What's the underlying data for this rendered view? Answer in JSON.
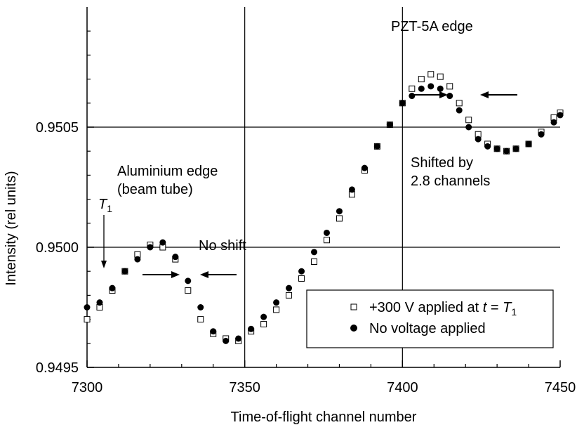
{
  "chart_data": {
    "type": "scatter",
    "xlabel": "Time-of-flight channel number",
    "ylabel": "Intensity (rel units)",
    "xlim": [
      7300,
      7450
    ],
    "ylim": [
      0.9495,
      0.951
    ],
    "x_ticks": [
      "7300",
      "7350",
      "7400",
      "7450"
    ],
    "x_tick_values": [
      7300,
      7350,
      7400,
      7450
    ],
    "y_ticks": [
      "0.9495",
      "0.9500",
      "0.9505"
    ],
    "y_tick_values": [
      0.9495,
      0.95,
      0.9505
    ],
    "gridlines": {
      "x": [
        7350,
        7400
      ],
      "y": [
        0.95,
        0.9505
      ]
    },
    "legend_position": "bottom-right",
    "series": [
      {
        "name": "+300 V applied at t = T1",
        "marker": "open-square",
        "points": [
          [
            7300,
            0.9497
          ],
          [
            7304,
            0.94975
          ],
          [
            7308,
            0.94982
          ],
          [
            7312,
            0.9499
          ],
          [
            7316,
            0.94997
          ],
          [
            7320,
            0.95001
          ],
          [
            7324,
            0.95
          ],
          [
            7328,
            0.94995
          ],
          [
            7332,
            0.94982
          ],
          [
            7336,
            0.9497
          ],
          [
            7340,
            0.94964
          ],
          [
            7344,
            0.94962
          ],
          [
            7348,
            0.94961
          ],
          [
            7352,
            0.94965
          ],
          [
            7356,
            0.94968
          ],
          [
            7360,
            0.94974
          ],
          [
            7364,
            0.9498
          ],
          [
            7368,
            0.94987
          ],
          [
            7372,
            0.94994
          ],
          [
            7376,
            0.95003
          ],
          [
            7380,
            0.95012
          ],
          [
            7384,
            0.95022
          ],
          [
            7388,
            0.95032
          ],
          [
            7392,
            0.95042
          ],
          [
            7396,
            0.95051
          ],
          [
            7400,
            0.9506
          ],
          [
            7403,
            0.95066
          ],
          [
            7406,
            0.9507
          ],
          [
            7409,
            0.95072
          ],
          [
            7412,
            0.95071
          ],
          [
            7415,
            0.95067
          ],
          [
            7418,
            0.9506
          ],
          [
            7421,
            0.95053
          ],
          [
            7424,
            0.95047
          ],
          [
            7427,
            0.95043
          ],
          [
            7430,
            0.95041
          ],
          [
            7433,
            0.9504
          ],
          [
            7436,
            0.95041
          ],
          [
            7440,
            0.95043
          ],
          [
            7444,
            0.95048
          ],
          [
            7448,
            0.95054
          ],
          [
            7450,
            0.95056
          ]
        ]
      },
      {
        "name": "No voltage applied",
        "marker": "filled-circle",
        "points": [
          [
            7300,
            0.94975
          ],
          [
            7304,
            0.94977
          ],
          [
            7308,
            0.94983
          ],
          [
            7312,
            0.9499
          ],
          [
            7316,
            0.94995
          ],
          [
            7320,
            0.95
          ],
          [
            7324,
            0.95002
          ],
          [
            7328,
            0.94996
          ],
          [
            7332,
            0.94986
          ],
          [
            7336,
            0.94975
          ],
          [
            7340,
            0.94965
          ],
          [
            7344,
            0.94961
          ],
          [
            7348,
            0.94962
          ],
          [
            7352,
            0.94966
          ],
          [
            7356,
            0.94971
          ],
          [
            7360,
            0.94977
          ],
          [
            7364,
            0.94983
          ],
          [
            7368,
            0.9499
          ],
          [
            7372,
            0.94998
          ],
          [
            7376,
            0.95006
          ],
          [
            7380,
            0.95015
          ],
          [
            7384,
            0.95024
          ],
          [
            7388,
            0.95033
          ],
          [
            7392,
            0.95042
          ],
          [
            7396,
            0.95051
          ],
          [
            7400,
            0.9506
          ],
          [
            7403,
            0.95063
          ],
          [
            7406,
            0.95066
          ],
          [
            7409,
            0.95067
          ],
          [
            7412,
            0.95066
          ],
          [
            7415,
            0.95063
          ],
          [
            7418,
            0.95057
          ],
          [
            7421,
            0.9505
          ],
          [
            7424,
            0.95045
          ],
          [
            7427,
            0.95042
          ],
          [
            7430,
            0.95041
          ],
          [
            7433,
            0.9504
          ],
          [
            7436,
            0.95041
          ],
          [
            7440,
            0.95043
          ],
          [
            7444,
            0.95047
          ],
          [
            7448,
            0.95052
          ],
          [
            7450,
            0.95055
          ]
        ]
      }
    ],
    "annotations": {
      "pzt": "PZT-5A edge",
      "shifted_1": "Shifted by",
      "shifted_2": "2.8 channels",
      "alum_1": "Aluminium edge",
      "alum_2": "(beam tube)",
      "t1_letter": "T",
      "t1_sub": "1",
      "noshift": "No shift"
    },
    "legend": {
      "entry1_prefix": "+300 V applied at ",
      "entry1_t": "t",
      "entry1_eq": " = ",
      "entry1_T": "T",
      "entry1_sub": "1",
      "entry2": "No voltage applied"
    }
  }
}
